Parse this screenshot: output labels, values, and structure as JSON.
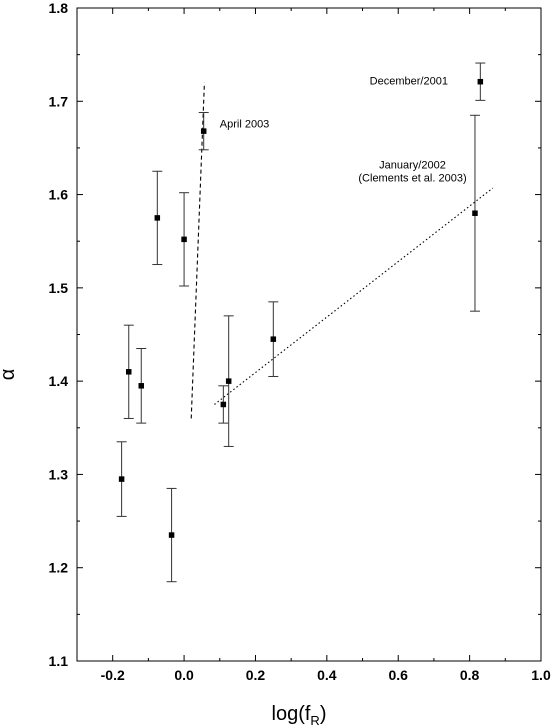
{
  "chart_data": {
    "type": "scatter",
    "title": "",
    "xlabel": "log(f",
    "xlabel_sub": "R",
    "xlabel_close": ")",
    "ylabel": "α",
    "xlim": [
      -0.3,
      1.0
    ],
    "ylim": [
      1.1,
      1.8
    ],
    "x_ticks": [
      -0.2,
      0.0,
      0.2,
      0.4,
      0.6,
      0.8,
      1.0
    ],
    "x_tick_labels": [
      "-0.2",
      "0.0",
      "0.2",
      "0.4",
      "0.6",
      "0.8",
      "1.0"
    ],
    "y_ticks": [
      1.1,
      1.2,
      1.3,
      1.4,
      1.5,
      1.6,
      1.7,
      1.8
    ],
    "y_tick_labels": [
      "1.1",
      "1.2",
      "1.3",
      "1.4",
      "1.5",
      "1.6",
      "1.7",
      "1.8"
    ],
    "grid": false,
    "points": [
      {
        "x": -0.175,
        "y": 1.295,
        "err": 0.04
      },
      {
        "x": -0.155,
        "y": 1.41,
        "err": 0.05
      },
      {
        "x": -0.12,
        "y": 1.395,
        "err": 0.04
      },
      {
        "x": -0.075,
        "y": 1.575,
        "err": 0.05
      },
      {
        "x": -0.035,
        "y": 1.235,
        "err": 0.05
      },
      {
        "x": 0.0,
        "y": 1.552,
        "err": 0.05
      },
      {
        "x": 0.055,
        "y": 1.668,
        "err": 0.02
      },
      {
        "x": 0.11,
        "y": 1.375,
        "err": 0.02
      },
      {
        "x": 0.125,
        "y": 1.4,
        "err": 0.07
      },
      {
        "x": 0.25,
        "y": 1.445,
        "err": 0.04
      },
      {
        "x": 0.815,
        "y": 1.58,
        "err": 0.105
      },
      {
        "x": 0.83,
        "y": 1.721,
        "err": 0.02
      }
    ],
    "fit_lines": [
      {
        "style": "dashed",
        "x1": 0.02,
        "y1": 1.36,
        "x2": 0.057,
        "y2": 1.72
      },
      {
        "style": "dotted",
        "x1": 0.085,
        "y1": 1.375,
        "x2": 0.865,
        "y2": 1.607
      }
    ],
    "annotations": [
      {
        "text": "December/2001",
        "x": 0.52,
        "y": 1.718,
        "anchor": "start"
      },
      {
        "text": "April 2003",
        "x": 0.1,
        "y": 1.672,
        "anchor": "start"
      },
      {
        "text": "January/2002",
        "x": 0.64,
        "y": 1.628,
        "anchor": "middle"
      },
      {
        "text": "(Clements et al. 2003)",
        "x": 0.64,
        "y": 1.614,
        "anchor": "middle"
      }
    ]
  }
}
